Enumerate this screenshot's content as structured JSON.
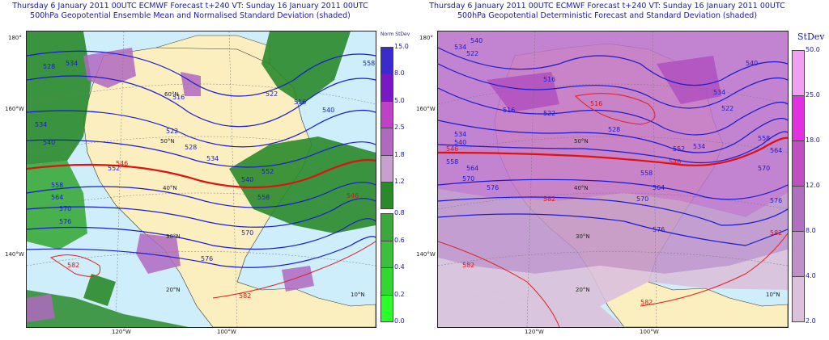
{
  "left": {
    "title_line1": "Thursday 6 January 2011 00UTC ECMWF Forecast t+240  VT: Sunday 16 January 2011 00UTC",
    "title_line2": "500hPa Geopotential Ensemble Mean and Normalised Standard Deviation (shaded)",
    "colorbar_title": "Norm StDev",
    "colorbar_labels": [
      "15.0",
      "8.0",
      "5.0",
      "2.5",
      "1.8",
      "1.2",
      "0.8",
      "0.6",
      "0.4",
      "0.2",
      "0.0"
    ],
    "colorbar_colors": [
      "#3a2ad0",
      "#7a18c8",
      "#c040c8",
      "#b068c0",
      "#c8a0d0",
      "#2a8a2a",
      "#3aa83a",
      "#3ac03a",
      "#30d830",
      "#2aff2a"
    ],
    "contour_labels": [
      "516",
      "522",
      "528",
      "534",
      "540",
      "546",
      "552",
      "558",
      "564",
      "570",
      "576",
      "582"
    ],
    "lat_labels": [
      "180°",
      "160°W",
      "140°W",
      "50°N",
      "40°N",
      "30°N",
      "20°N",
      "10°N",
      "60°N"
    ],
    "lon_labels": [
      "120°W",
      "100°W"
    ]
  },
  "right": {
    "title_line1": "Thursday 6 January 2011 00UTC ECMWF Forecast t+240  VT: Sunday 16 January 2011 00UTC",
    "title_line2": "500hPa Geopotential Deterministic Forecast and Standard Deviation (shaded)",
    "colorbar_title": "StDev",
    "colorbar_labels": [
      "50.0",
      "25.0",
      "18.0",
      "12.0",
      "8.0",
      "4.0",
      "2.0"
    ],
    "colorbar_colors": [
      "#f0a0f0",
      "#e030e0",
      "#c050c0",
      "#b070c0",
      "#c090c8",
      "#dcc0dc"
    ],
    "lat_labels": [
      "180°",
      "160°W",
      "140°W",
      "50°N",
      "40°N",
      "30°N",
      "20°N",
      "10°N"
    ],
    "lon_labels": [
      "120°W",
      "100°W"
    ]
  },
  "colors": {
    "title": "#1a1aa8",
    "ocean": "#cdeefa",
    "land": "#fbefc0",
    "contour": "#1a1ad0",
    "contour_bold": "#e01010",
    "contour_warm": "#e02020"
  }
}
